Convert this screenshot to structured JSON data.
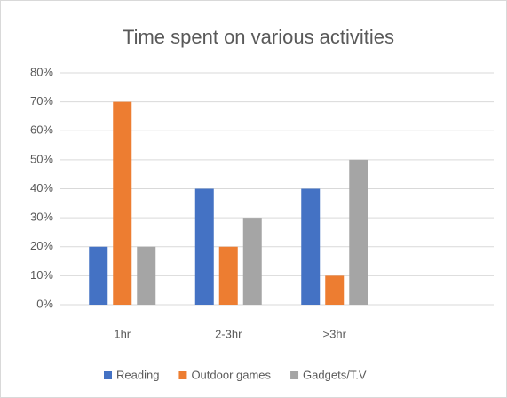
{
  "chart_data": {
    "type": "bar",
    "title": "Time spent on various activities",
    "categories": [
      "1hr",
      "2-3hr",
      ">3hr",
      null
    ],
    "series": [
      {
        "name": "Reading",
        "color": "#4472c4",
        "values": [
          20,
          40,
          40,
          null
        ]
      },
      {
        "name": "Outdoor games",
        "color": "#ed7d31",
        "values": [
          70,
          20,
          10,
          null
        ]
      },
      {
        "name": "Gadgets/T.V",
        "color": "#a5a5a5",
        "values": [
          20,
          30,
          50,
          null
        ]
      }
    ],
    "ylim": [
      0,
      80
    ],
    "yticks": [
      {
        "value": 0,
        "label": "0%"
      },
      {
        "value": 10,
        "label": "10%"
      },
      {
        "value": 20,
        "label": "20%"
      },
      {
        "value": 30,
        "label": "30%"
      },
      {
        "value": 40,
        "label": "40%"
      },
      {
        "value": 50,
        "label": "50%"
      },
      {
        "value": 60,
        "label": "60%"
      },
      {
        "value": 70,
        "label": "70%"
      },
      {
        "value": 80,
        "label": "80%"
      }
    ],
    "grid": true,
    "legend": "bottom"
  }
}
